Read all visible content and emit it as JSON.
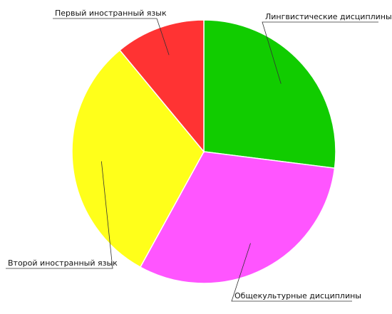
{
  "chart_data": {
    "type": "pie",
    "title": "",
    "slices": [
      {
        "label": "Лингвистические дисциплины",
        "value": 27.0,
        "color": "#11cc00"
      },
      {
        "label": "Общекультурные дисциплины",
        "value": 31.0,
        "color": "#ff55ff"
      },
      {
        "label": "Второй иностранный язык",
        "value": 31.0,
        "color": "#ffff1a"
      },
      {
        "label": "Первый иностранный язык",
        "value": 11.0,
        "color": "#ff3333"
      }
    ],
    "start_angle_deg": 0,
    "direction": "clockwise",
    "legend": "none",
    "labels": "outside-with-leader-lines"
  }
}
